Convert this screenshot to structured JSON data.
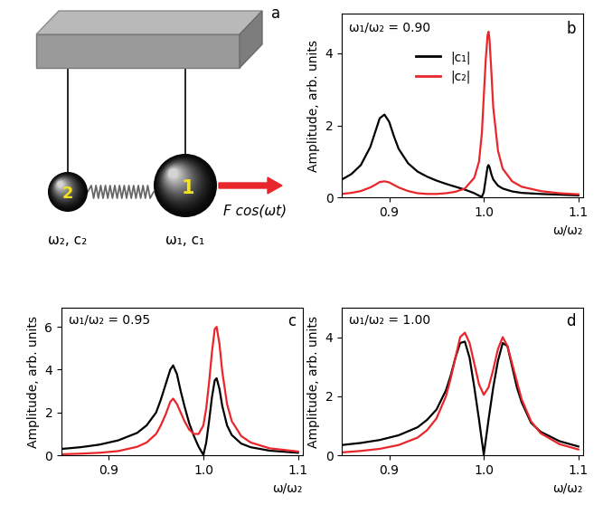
{
  "diagram": {
    "panel_label": "a",
    "force_label": "F cos(ωt)",
    "mass_labels": [
      "2",
      "1"
    ],
    "mass_params": [
      "ω₂, c₂",
      "ω₁, c₁"
    ]
  },
  "chart_data": [
    {
      "type": "line",
      "panel_label": "b",
      "annotation": "ω₁/ω₂ = 0.90",
      "xlabel": "ω/ω₂",
      "ylabel": "Amplitude, arb. units",
      "x": [
        0.85,
        0.86,
        0.87,
        0.88,
        0.885,
        0.89,
        0.895,
        0.9,
        0.905,
        0.91,
        0.92,
        0.93,
        0.94,
        0.95,
        0.96,
        0.97,
        0.98,
        0.99,
        0.995,
        0.998,
        1.0,
        1.002,
        1.004,
        1.005,
        1.006,
        1.008,
        1.01,
        1.015,
        1.02,
        1.03,
        1.04,
        1.06,
        1.08,
        1.1
      ],
      "series": [
        {
          "name": "|c₁|",
          "color": "#000000",
          "values": [
            0.5,
            0.65,
            0.9,
            1.4,
            1.8,
            2.2,
            2.3,
            2.1,
            1.7,
            1.35,
            0.95,
            0.72,
            0.58,
            0.47,
            0.38,
            0.3,
            0.22,
            0.12,
            0.05,
            0.02,
            0.15,
            0.5,
            0.85,
            0.9,
            0.85,
            0.65,
            0.5,
            0.33,
            0.25,
            0.17,
            0.13,
            0.1,
            0.08,
            0.06
          ]
        },
        {
          "name": "|c₂|",
          "color": "#e8262b",
          "values": [
            0.1,
            0.13,
            0.18,
            0.28,
            0.35,
            0.43,
            0.45,
            0.42,
            0.35,
            0.28,
            0.18,
            0.12,
            0.1,
            0.1,
            0.12,
            0.16,
            0.25,
            0.55,
            1.0,
            1.8,
            2.8,
            3.8,
            4.5,
            4.6,
            4.4,
            3.5,
            2.5,
            1.3,
            0.8,
            0.45,
            0.3,
            0.18,
            0.12,
            0.09
          ]
        }
      ],
      "legend": "upper center",
      "xlim": [
        0.85,
        1.105
      ],
      "xticks": [
        0.9,
        1.0,
        1.1
      ],
      "ylim": [
        0,
        5.1
      ],
      "yticks": [
        0,
        2,
        4
      ]
    },
    {
      "type": "line",
      "panel_label": "c",
      "annotation": "ω₁/ω₂ = 0.95",
      "xlabel": "ω/ω₂",
      "ylabel": "Amplitude, arb. units",
      "x": [
        0.85,
        0.87,
        0.89,
        0.91,
        0.93,
        0.94,
        0.95,
        0.955,
        0.96,
        0.965,
        0.968,
        0.972,
        0.976,
        0.98,
        0.985,
        0.99,
        0.995,
        1.0,
        1.003,
        1.006,
        1.009,
        1.012,
        1.014,
        1.017,
        1.02,
        1.025,
        1.03,
        1.04,
        1.05,
        1.07,
        1.1
      ],
      "series": [
        {
          "color": "#000000",
          "values": [
            0.3,
            0.38,
            0.5,
            0.7,
            1.05,
            1.4,
            2.0,
            2.6,
            3.3,
            4.0,
            4.2,
            3.8,
            3.0,
            2.3,
            1.5,
            0.9,
            0.4,
            0.02,
            0.6,
            1.6,
            2.7,
            3.5,
            3.6,
            3.1,
            2.3,
            1.4,
            0.95,
            0.55,
            0.38,
            0.22,
            0.12
          ]
        },
        {
          "color": "#e8262b",
          "values": [
            0.05,
            0.08,
            0.12,
            0.2,
            0.4,
            0.6,
            1.0,
            1.4,
            1.9,
            2.5,
            2.65,
            2.4,
            2.0,
            1.6,
            1.2,
            1.0,
            1.0,
            1.4,
            2.2,
            3.4,
            4.8,
            5.9,
            6.0,
            5.2,
            3.9,
            2.4,
            1.6,
            0.9,
            0.6,
            0.33,
            0.18
          ]
        }
      ],
      "xlim": [
        0.85,
        1.105
      ],
      "xticks": [
        0.9,
        1.0,
        1.1
      ],
      "ylim": [
        0,
        6.9
      ],
      "yticks": [
        0,
        2,
        4,
        6
      ]
    },
    {
      "type": "line",
      "panel_label": "d",
      "annotation": "ω₁/ω₂ = 1.00",
      "xlabel": "ω/ω₂",
      "ylabel": "Amplitude, arb. units",
      "x": [
        0.85,
        0.87,
        0.89,
        0.91,
        0.93,
        0.94,
        0.95,
        0.96,
        0.965,
        0.97,
        0.975,
        0.98,
        0.985,
        0.99,
        0.995,
        1.0,
        1.005,
        1.01,
        1.015,
        1.02,
        1.025,
        1.03,
        1.035,
        1.04,
        1.05,
        1.06,
        1.08,
        1.1
      ],
      "series": [
        {
          "color": "#000000",
          "values": [
            0.35,
            0.42,
            0.52,
            0.68,
            0.95,
            1.2,
            1.55,
            2.2,
            2.7,
            3.3,
            3.8,
            3.85,
            3.3,
            2.3,
            1.2,
            0.02,
            1.2,
            2.3,
            3.2,
            3.8,
            3.7,
            3.0,
            2.3,
            1.8,
            1.1,
            0.8,
            0.48,
            0.3
          ]
        },
        {
          "color": "#e8262b",
          "values": [
            0.1,
            0.15,
            0.22,
            0.35,
            0.6,
            0.85,
            1.25,
            2.0,
            2.6,
            3.3,
            4.0,
            4.15,
            3.8,
            3.1,
            2.4,
            2.05,
            2.3,
            2.9,
            3.6,
            4.0,
            3.7,
            3.1,
            2.5,
            1.9,
            1.15,
            0.75,
            0.38,
            0.2
          ]
        }
      ],
      "xlim": [
        0.85,
        1.105
      ],
      "xticks": [
        0.9,
        1.0,
        1.1
      ],
      "ylim": [
        0,
        5.0
      ],
      "yticks": [
        0,
        2,
        4
      ]
    }
  ]
}
